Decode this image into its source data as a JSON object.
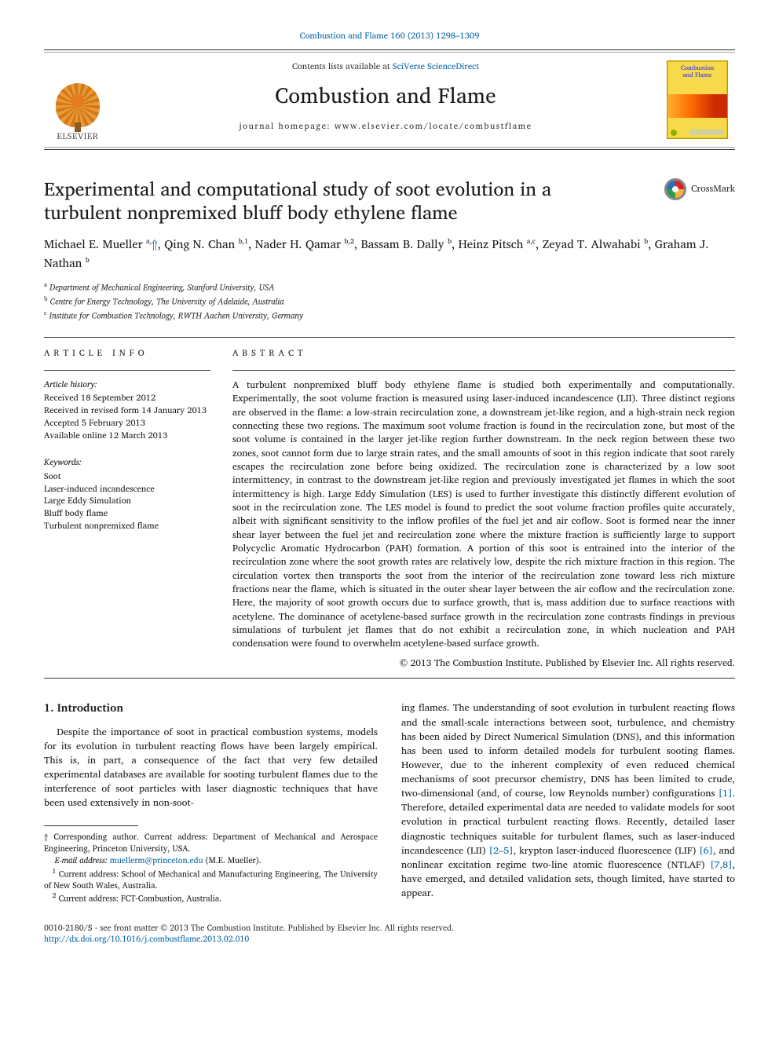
{
  "journal_ref": {
    "text": "Combustion and Flame 160 (2013) 1298–1309",
    "href": "#"
  },
  "banner": {
    "publisher_name": "ELSEVIER",
    "contents_prefix": "Contents lists available at ",
    "contents_link": "SciVerse ScienceDirect",
    "journal_name": "Combustion and Flame",
    "homepage_prefix": "journal homepage: ",
    "homepage_url": "www.elsevier.com/locate/combustflame",
    "cover_title_line1": "Combustion",
    "cover_title_line2": "and Flame"
  },
  "crossmark_label": "CrossMark",
  "article_title": "Experimental and computational study of soot evolution in a turbulent nonpremixed bluff body ethylene flame",
  "authors_html": "Michael E. Mueller <sup>a,</sup>*, Qing N. Chan <sup>b,1</sup>, Nader H. Qamar <sup>b,2</sup>, Bassam B. Dally <sup>b</sup>, Heinz Pitsch <sup>a,c</sup>, Zeyad T. Alwahabi <sup>b</sup>, Graham J. Nathan <sup>b</sup>",
  "affiliations": [
    {
      "sup": "a",
      "text": "Department of Mechanical Engineering, Stanford University, USA"
    },
    {
      "sup": "b",
      "text": "Centre for Energy Technology, The University of Adelaide, Australia"
    },
    {
      "sup": "c",
      "text": "Institute for Combustion Technology, RWTH Aachen University, Germany"
    }
  ],
  "article_info_heading": "article info",
  "abstract_heading": "abstract",
  "history_heading": "Article history:",
  "history": [
    "Received 18 September 2012",
    "Received in revised form 14 January 2013",
    "Accepted 5 February 2013",
    "Available online 12 March 2013"
  ],
  "keywords_heading": "Keywords:",
  "keywords": [
    "Soot",
    "Laser-induced incandescence",
    "Large Eddy Simulation",
    "Bluff body flame",
    "Turbulent nonpremixed flame"
  ],
  "abstract_text": "A turbulent nonpremixed bluff body ethylene flame is studied both experimentally and computationally. Experimentally, the soot volume fraction is measured using laser-induced incandescence (LII). Three distinct regions are observed in the flame: a low-strain recirculation zone, a downstream jet-like region, and a high-strain neck region connecting these two regions. The maximum soot volume fraction is found in the recirculation zone, but most of the soot volume is contained in the larger jet-like region further downstream. In the neck region between these two zones, soot cannot form due to large strain rates, and the small amounts of soot in this region indicate that soot rarely escapes the recirculation zone before being oxidized. The recirculation zone is characterized by a low soot intermittency, in contrast to the downstream jet-like region and previously investigated jet flames in which the soot intermittency is high. Large Eddy Simulation (LES) is used to further investigate this distinctly different evolution of soot in the recirculation zone. The LES model is found to predict the soot volume fraction profiles quite accurately, albeit with significant sensitivity to the inflow profiles of the fuel jet and air coflow. Soot is formed near the inner shear layer between the fuel jet and recirculation zone where the mixture fraction is sufficiently large to support Polycyclic Aromatic Hydrocarbon (PAH) formation. A portion of this soot is entrained into the interior of the recirculation zone where the soot growth rates are relatively low, despite the rich mixture fraction in this region. The circulation vortex then transports the soot from the interior of the recirculation zone toward less rich mixture fractions near the flame, which is situated in the outer shear layer between the air coflow and the recirculation zone. Here, the majority of soot growth occurs due to surface growth, that is, mass addition due to surface reactions with acetylene. The dominance of acetylene-based surface growth in the recirculation zone contrasts findings in previous simulations of turbulent jet flames that do not exhibit a recirculation zone, in which nucleation and PAH condensation were found to overwhelm acetylene-based surface growth.",
  "copyright_line": "© 2013 The Combustion Institute. Published by Elsevier Inc. All rights reserved.",
  "intro_heading": "1. Introduction",
  "intro_left": "Despite the importance of soot in practical combustion systems, models for its evolution in turbulent reacting flows have been largely empirical. This is, in part, a consequence of the fact that very few detailed experimental databases are available for sooting turbulent flames due to the interference of soot particles with laser diagnostic techniques that have been used extensively in non-soot-",
  "intro_right_pre": "ing flames. The understanding of soot evolution in turbulent reacting flows and the small-scale interactions between soot, turbulence, and chemistry has been aided by Direct Numerical Simulation (DNS), and this information has been used to inform detailed models for turbulent sooting flames. However, due to the inherent complexity of even reduced chemical mechanisms of soot precursor chemistry, DNS has been limited to crude, two-dimensional (and, of course, low Reynolds number) configurations ",
  "intro_right_ref1": "[1]",
  "intro_right_mid1": ". Therefore, detailed experimental data are needed to validate models for soot evolution in practical turbulent reacting flows. Recently, detailed laser diagnostic techniques suitable for turbulent flames, such as laser-induced incandescence (LII) ",
  "intro_right_ref2": "[2–5]",
  "intro_right_mid2": ", krypton laser-induced fluorescence (LIF) ",
  "intro_right_ref3": "[6]",
  "intro_right_mid3": ", and nonlinear excitation regime two-line atomic fluorescence (NTLAF) ",
  "intro_right_ref4": "[7,8]",
  "intro_right_post": ", have emerged, and detailed validation sets, though limited, have started to appear.",
  "footnotes": {
    "corr_marker": "⇑",
    "corr_text": " Corresponding author. Current address: Department of Mechanical and Aerospace Engineering, Princeton University, USA.",
    "email_label": "E-mail address: ",
    "email": "muellerm@princeton.edu",
    "email_person": " (M.E. Mueller).",
    "fn1_marker": "1",
    "fn1_text": " Current address: School of Mechanical and Manufacturing Engineering, The University of New South Wales, Australia.",
    "fn2_marker": "2",
    "fn2_text": " Current address: FCT-Combustion, Australia."
  },
  "bottom": {
    "issn_line": "0010-2180/$ - see front matter © 2013 The Combustion Institute. Published by Elsevier Inc. All rights reserved.",
    "doi": "http://dx.doi.org/10.1016/j.combustflame.2013.02.010"
  },
  "colors": {
    "link": "#0763a8",
    "text": "#1a1a1a",
    "rule": "#333333",
    "cover_bg": "#f7d94c"
  },
  "typography": {
    "body_pt": 13,
    "title_pt": 24,
    "journal_title_pt": 27,
    "abstract_pt": 12.2,
    "small_pt": 11,
    "footnote_pt": 10.5
  }
}
